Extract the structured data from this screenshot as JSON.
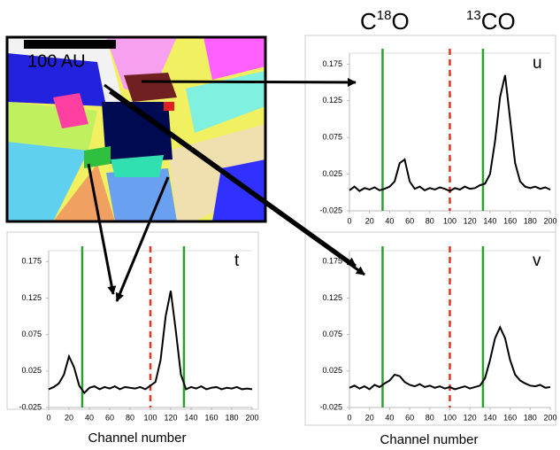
{
  "figure": {
    "scale_label": "100 AU",
    "line1": [
      "C",
      "18",
      "O"
    ],
    "line2": [
      "13",
      "CO"
    ],
    "xlabel_left": "Channel number",
    "xlabel_right": "Channel number"
  },
  "chart_data": [
    {
      "type": "line",
      "label": "u",
      "color": "#000000",
      "x": [
        0,
        5,
        10,
        15,
        20,
        25,
        30,
        35,
        40,
        45,
        50,
        55,
        60,
        65,
        70,
        75,
        80,
        85,
        90,
        95,
        100,
        105,
        110,
        115,
        120,
        125,
        130,
        135,
        140,
        145,
        150,
        155,
        160,
        165,
        170,
        175,
        180,
        185,
        190,
        195,
        200
      ],
      "values": [
        0.003,
        0.008,
        0.002,
        0.006,
        0.004,
        0.007,
        0.003,
        0.005,
        0.008,
        0.015,
        0.04,
        0.045,
        0.015,
        0.005,
        0.008,
        0.003,
        0.006,
        0.004,
        0.007,
        0.005,
        0.002,
        0.006,
        0.004,
        0.008,
        0.005,
        0.006,
        0.01,
        0.012,
        0.025,
        0.07,
        0.13,
        0.16,
        0.1,
        0.04,
        0.015,
        0.008,
        0.006,
        0.008,
        0.005,
        0.007,
        0.004
      ],
      "xlim": [
        0,
        200
      ],
      "xticks": [
        0,
        20,
        40,
        60,
        80,
        100,
        120,
        140,
        160,
        180,
        200
      ],
      "ylim": [
        -0.025,
        0.19
      ],
      "yticks": [
        -0.025,
        0.025,
        0.075,
        0.125,
        0.175
      ],
      "vlines": [
        {
          "x": 33,
          "color": "#2ca02c"
        },
        {
          "x": 100,
          "color": "#e8321e",
          "dashed": true
        },
        {
          "x": 133,
          "color": "#2ca02c"
        }
      ]
    },
    {
      "type": "line",
      "label": "t",
      "color": "#000000",
      "x": [
        0,
        5,
        10,
        15,
        20,
        25,
        30,
        35,
        40,
        45,
        50,
        55,
        60,
        65,
        70,
        75,
        80,
        85,
        90,
        95,
        100,
        105,
        110,
        115,
        120,
        125,
        130,
        135,
        140,
        145,
        150,
        155,
        160,
        165,
        170,
        175,
        180,
        185,
        190,
        195,
        200
      ],
      "values": [
        0.0,
        0.003,
        0.008,
        0.02,
        0.045,
        0.03,
        0.005,
        -0.005,
        0.002,
        0.004,
        0.0,
        0.003,
        0.001,
        0.004,
        0.0,
        0.003,
        0.002,
        0.001,
        0.003,
        0.0,
        0.005,
        0.01,
        0.04,
        0.1,
        0.135,
        0.08,
        0.02,
        0.0,
        0.003,
        0.001,
        0.004,
        0.0,
        0.002,
        0.003,
        0.0,
        0.002,
        0.001,
        0.003,
        0.0,
        0.001,
        0.0
      ],
      "xlim": [
        0,
        200
      ],
      "xticks": [
        0,
        20,
        40,
        60,
        80,
        100,
        120,
        140,
        160,
        180,
        200
      ],
      "ylim": [
        -0.025,
        0.19
      ],
      "yticks": [
        -0.025,
        0.025,
        0.075,
        0.125,
        0.175
      ],
      "vlines": [
        {
          "x": 33,
          "color": "#2ca02c"
        },
        {
          "x": 100,
          "color": "#e8321e",
          "dashed": true
        },
        {
          "x": 133,
          "color": "#2ca02c"
        }
      ]
    },
    {
      "type": "line",
      "label": "v",
      "color": "#000000",
      "x": [
        0,
        5,
        10,
        15,
        20,
        25,
        30,
        35,
        40,
        45,
        50,
        55,
        60,
        65,
        70,
        75,
        80,
        85,
        90,
        95,
        100,
        105,
        110,
        115,
        120,
        125,
        130,
        135,
        140,
        145,
        150,
        155,
        160,
        165,
        170,
        175,
        180,
        185,
        190,
        195,
        200
      ],
      "values": [
        0.002,
        0.005,
        0.001,
        0.004,
        0.0,
        0.006,
        0.003,
        0.008,
        0.012,
        0.02,
        0.018,
        0.01,
        0.006,
        0.004,
        0.007,
        0.003,
        0.005,
        0.002,
        0.004,
        0.001,
        0.003,
        0.0,
        0.002,
        0.004,
        0.001,
        0.003,
        0.005,
        0.015,
        0.04,
        0.07,
        0.085,
        0.07,
        0.04,
        0.02,
        0.012,
        0.008,
        0.005,
        0.004,
        0.006,
        0.002,
        0.003
      ],
      "xlim": [
        0,
        200
      ],
      "xticks": [
        0,
        20,
        40,
        60,
        80,
        100,
        120,
        140,
        160,
        180,
        200
      ],
      "ylim": [
        -0.025,
        0.19
      ],
      "yticks": [
        -0.025,
        0.025,
        0.075,
        0.125,
        0.175
      ],
      "vlines": [
        {
          "x": 33,
          "color": "#2ca02c"
        },
        {
          "x": 100,
          "color": "#e8321e",
          "dashed": true
        },
        {
          "x": 133,
          "color": "#2ca02c"
        }
      ]
    }
  ]
}
